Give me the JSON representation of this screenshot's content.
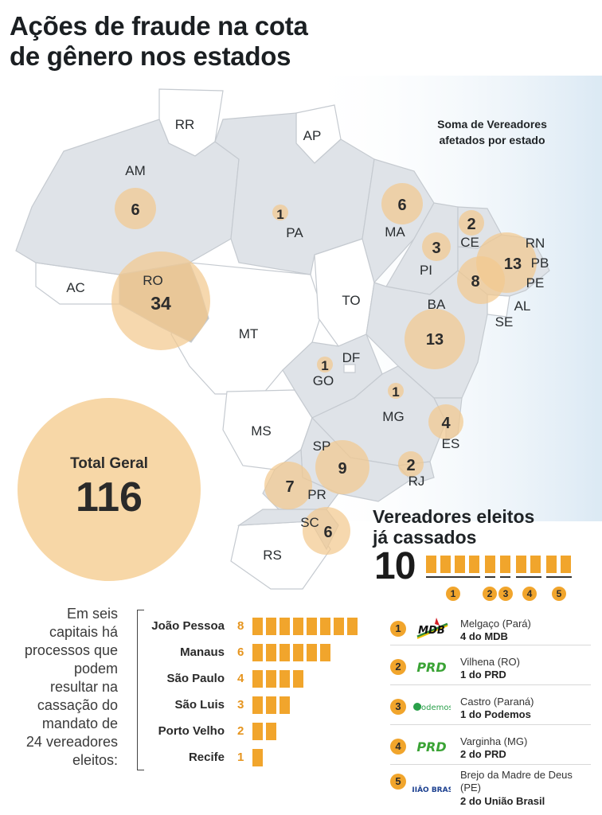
{
  "title_line1": "Ações de fraude na cota",
  "title_line2": "de gênero nos estados",
  "soma_line1": "Soma de Vereadores",
  "soma_line2": "afetados por estado",
  "states": [
    "RR",
    "AP",
    "AM",
    "PA",
    "MA",
    "CE",
    "RN",
    "PB",
    "PE",
    "AL",
    "SE",
    "PI",
    "BA",
    "TO",
    "AC",
    "RO",
    "MT",
    "DF",
    "GO",
    "MG",
    "ES",
    "MS",
    "SP",
    "RJ",
    "PR",
    "SC",
    "RS"
  ],
  "bubbles": [
    {
      "state": "AM",
      "value": "6"
    },
    {
      "state": "PA",
      "value": "1"
    },
    {
      "state": "MA",
      "value": "6"
    },
    {
      "state": "CE",
      "value": "2"
    },
    {
      "state": "PI",
      "value": "3"
    },
    {
      "state": "RN/PB",
      "value": "13"
    },
    {
      "state": "PE",
      "value": "8"
    },
    {
      "state": "RO",
      "value": "34"
    },
    {
      "state": "BA",
      "value": "13"
    },
    {
      "state": "GO",
      "value": "1"
    },
    {
      "state": "MG",
      "value": "1"
    },
    {
      "state": "ES",
      "value": "4"
    },
    {
      "state": "SP",
      "value": "9"
    },
    {
      "state": "RJ",
      "value": "2"
    },
    {
      "state": "PR",
      "value": "7"
    },
    {
      "state": "SC",
      "value": "6"
    }
  ],
  "total_label": "Total Geral",
  "total_value": "116",
  "cassados_line1": "Vereadores eleitos",
  "cassados_line2": "já cassados",
  "cassados_value": "10",
  "cassados_groups": [
    "1",
    "2",
    "3",
    "4",
    "5"
  ],
  "intro_text": [
    "Em seis",
    "capitais há",
    "processos que",
    "podem",
    "resultar na",
    "cassação do",
    "mandato de",
    "24 vereadores",
    "eleitos:"
  ],
  "capitals": [
    {
      "name": "João Pessoa",
      "value": 8
    },
    {
      "name": "Manaus",
      "value": 6
    },
    {
      "name": "São Paulo",
      "value": 4
    },
    {
      "name": "São Luis",
      "value": 3
    },
    {
      "name": "Porto Velho",
      "value": 2
    },
    {
      "name": "Recife",
      "value": 1
    }
  ],
  "legend": [
    {
      "idx": "1",
      "logo": "MDB",
      "city": "Melgaço (Pará)",
      "party": "4 do MDB"
    },
    {
      "idx": "2",
      "logo": "PRD",
      "city": "Vilhena (RO)",
      "party": "1 do PRD"
    },
    {
      "idx": "3",
      "logo": "Podemos",
      "city": "Castro (Paraná)",
      "party": "1 do Podemos"
    },
    {
      "idx": "4",
      "logo": "PRD",
      "city": "Varginha (MG)",
      "party": "2 do PRD"
    },
    {
      "idx": "5",
      "logo": "UNIÃO BRASIL",
      "city": "Brejo da Madre de Deus (PE)",
      "party": "2 do União Brasil"
    }
  ],
  "colors": {
    "accent": "#f1a52c",
    "bubble": "#f2c98f",
    "map_fill": "#dfe3e8",
    "sea": "#e5f0f8"
  }
}
